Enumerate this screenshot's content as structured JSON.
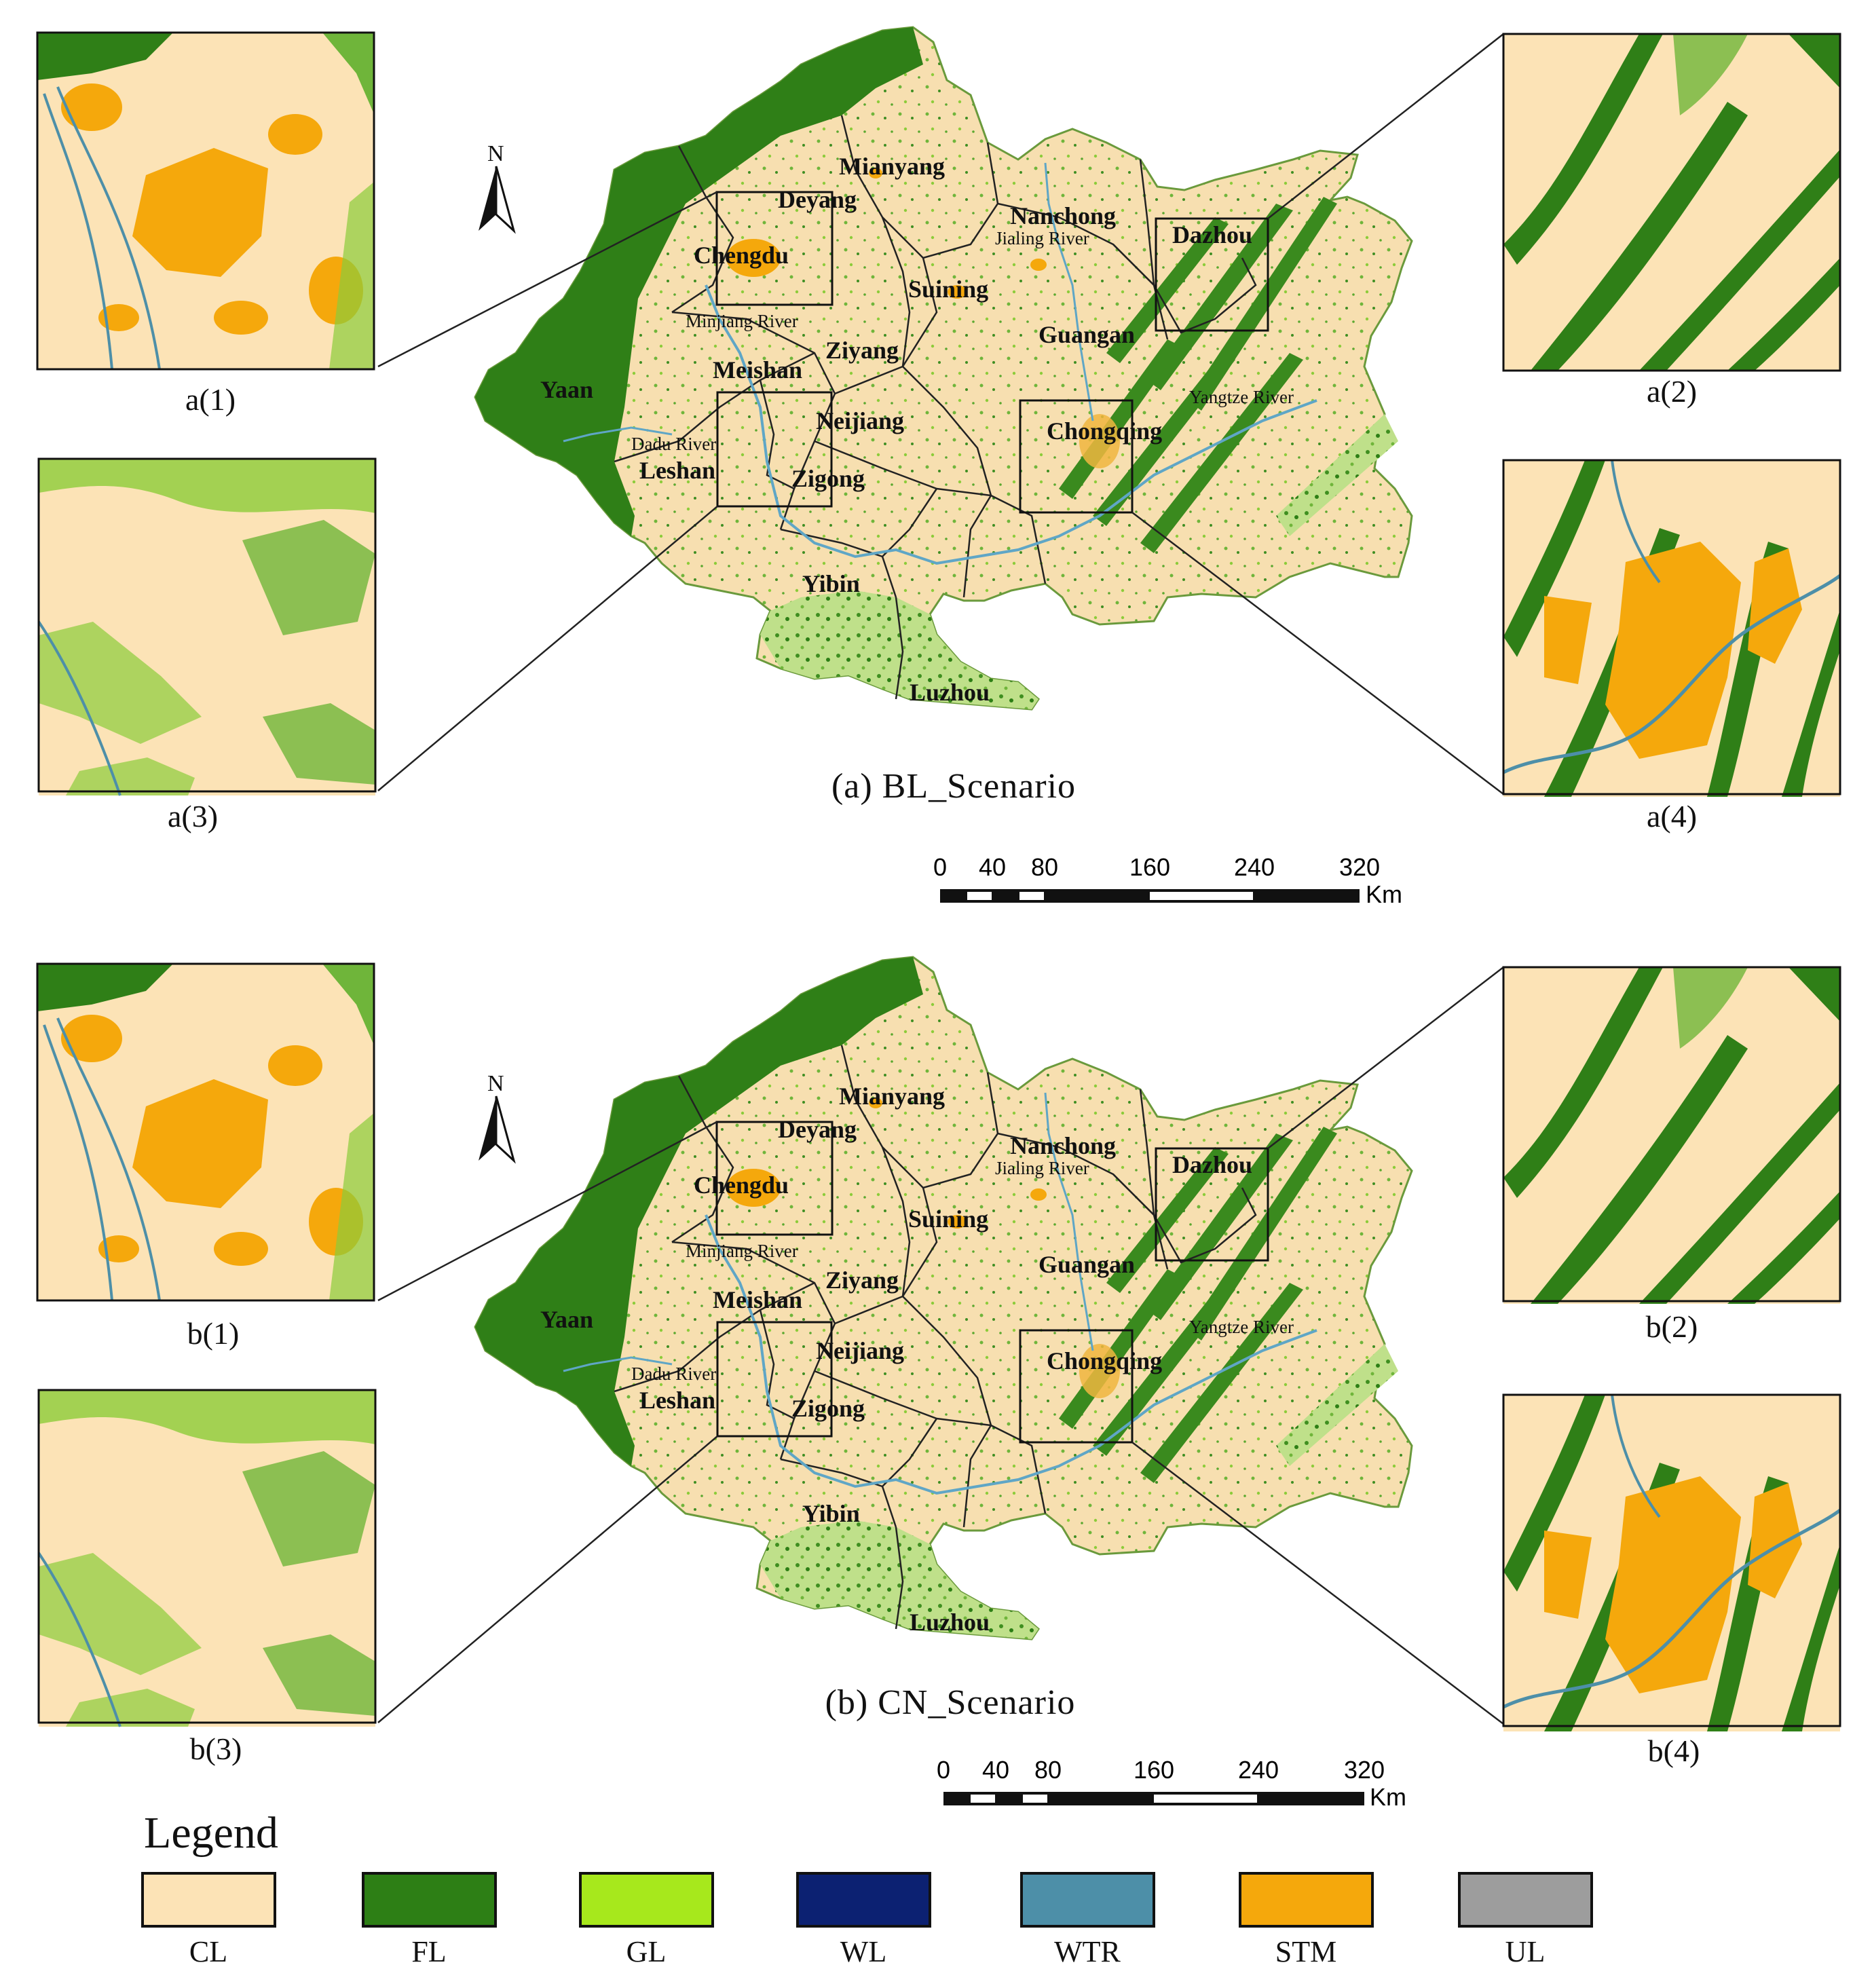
{
  "panels": [
    {
      "caption": "(a)  BL_Scenario",
      "insets": [
        "a(1)",
        "a(2)",
        "a(3)",
        "a(4)"
      ]
    },
    {
      "caption": "(b)  CN_Scenario",
      "insets": [
        "b(1)",
        "b(2)",
        "b(3)",
        "b(4)"
      ]
    }
  ],
  "cities": [
    "Mianyang",
    "Deyang",
    "Chengdu",
    "Nanchong",
    "Dazhou",
    "Suining",
    "Guangan",
    "Ziyang",
    "Meishan",
    "Yaan",
    "Neijiang",
    "Chongqing",
    "Leshan",
    "Zigong",
    "Yibin",
    "Luzhou"
  ],
  "rivers": [
    "Jialing River",
    "Minjiang River",
    "Yangtze River",
    "Dadu River"
  ],
  "north_label": "N",
  "scale_bar": {
    "ticks": [
      "0",
      "40",
      "80",
      "160",
      "240",
      "320"
    ],
    "unit": "Km"
  },
  "legend": {
    "title": "Legend",
    "items": [
      {
        "code": "CL",
        "color": "#fce3b6"
      },
      {
        "code": "FL",
        "color": "#2d7f15"
      },
      {
        "code": "GL",
        "color": "#a7e81c"
      },
      {
        "code": "WL",
        "color": "#0c2172"
      },
      {
        "code": "WTR",
        "color": "#4d8fa8"
      },
      {
        "code": "STM",
        "color": "#f5a80c"
      },
      {
        "code": "UL",
        "color": "#9d9d9d"
      }
    ]
  }
}
